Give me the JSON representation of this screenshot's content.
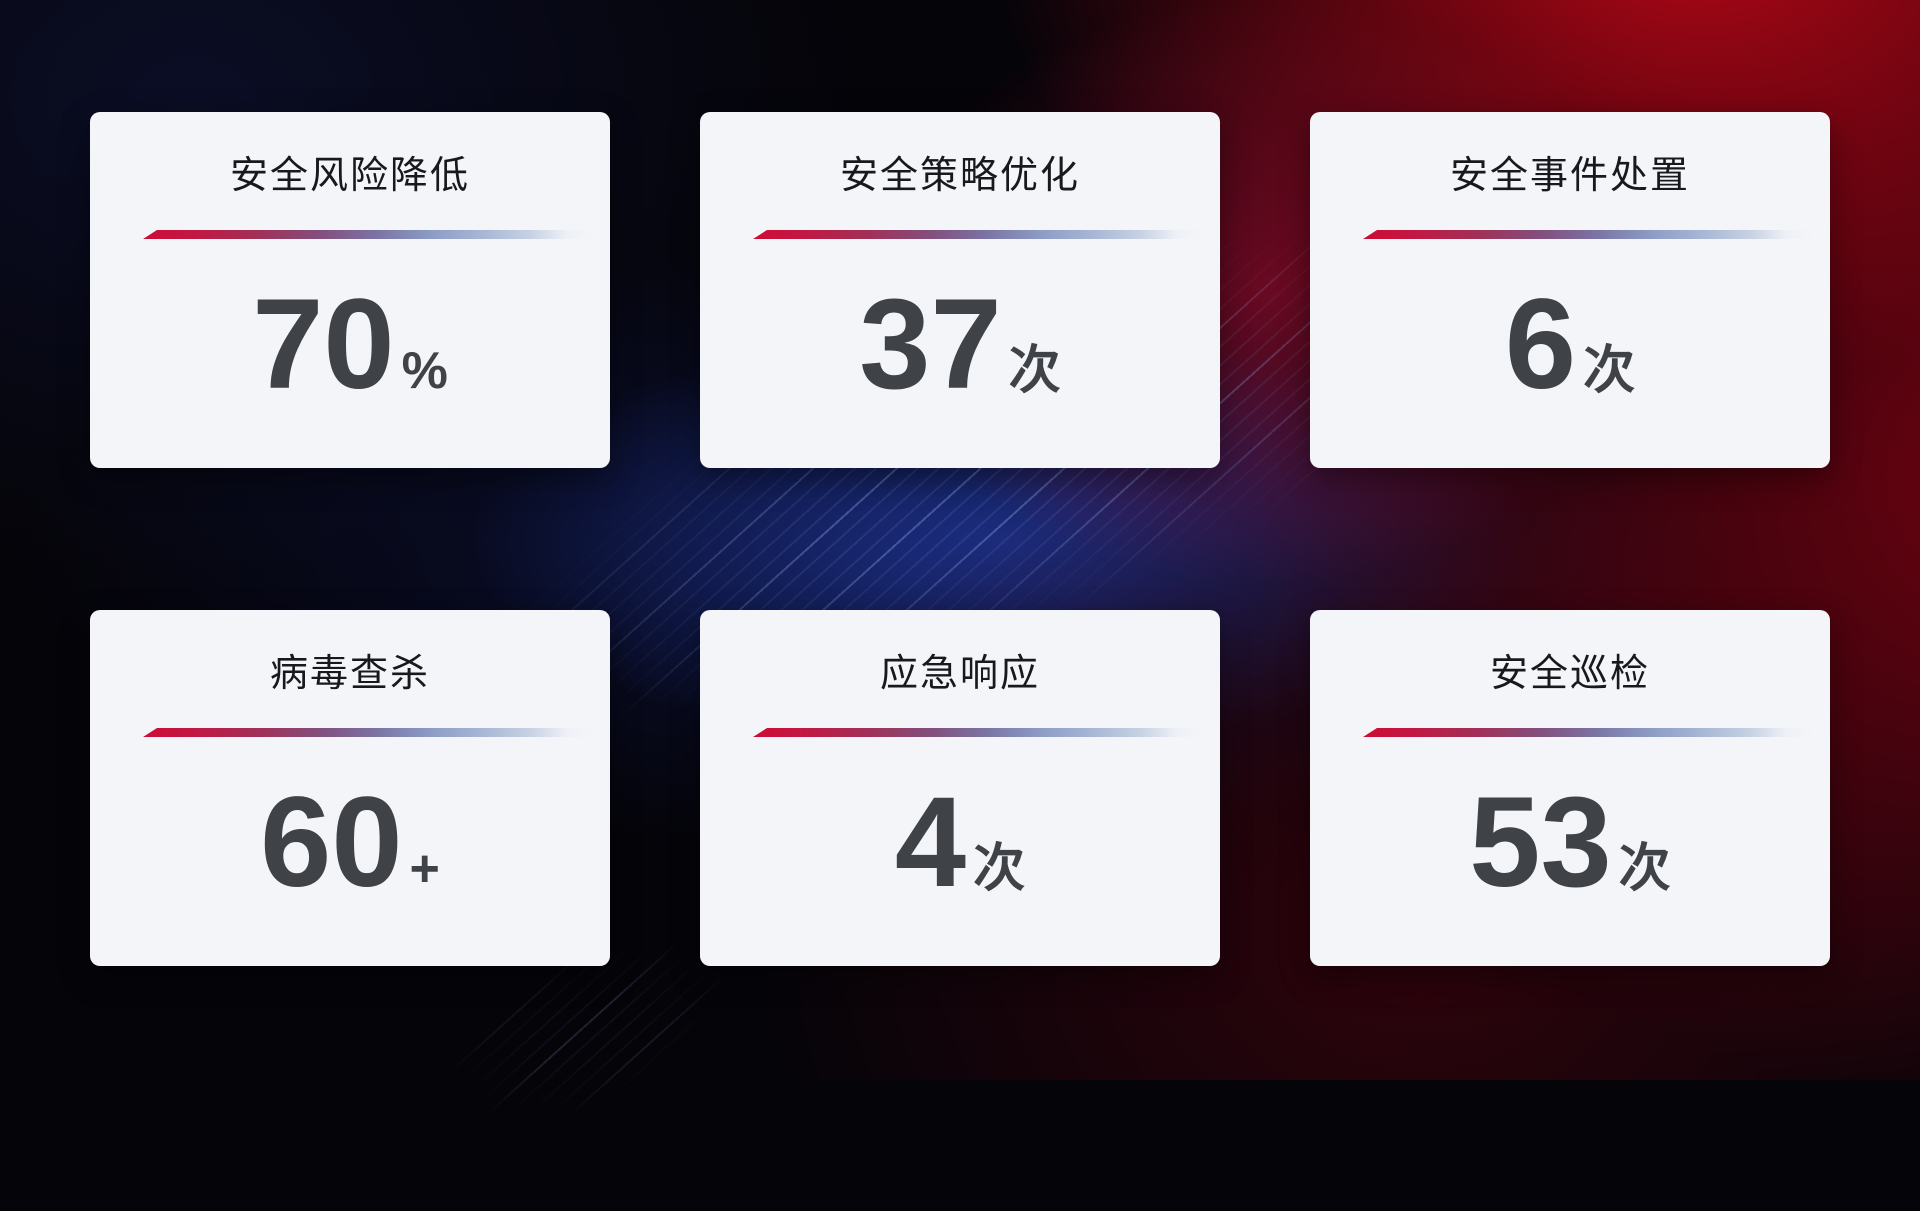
{
  "screen": {
    "type": "security-operations-kpi-dashboard",
    "colors": {
      "background_base": "#050409",
      "background_red_glow": "#ba0616",
      "background_crimson_beam": "#cd0e3a",
      "background_blue_glow": "#1e328e",
      "background_navy": "#0c102c",
      "background_maroon": "#420310",
      "card_background": "#f4f5f8",
      "card_title_text": "#17191e",
      "card_value_text": "#3f4247",
      "divider_red": "#ce0c35",
      "divider_purple": "#7b74a5",
      "divider_light_blue": "#a9b8d6"
    }
  },
  "cards": [
    {
      "title": "安全风险降低",
      "value": "70",
      "unit": "%"
    },
    {
      "title": "安全策略优化",
      "value": "37",
      "unit": "次"
    },
    {
      "title": "安全事件处置",
      "value": "6",
      "unit": "次"
    },
    {
      "title": "病毒查杀",
      "value": "60",
      "unit": "+"
    },
    {
      "title": "应急响应",
      "value": "4",
      "unit": "次"
    },
    {
      "title": "安全巡检",
      "value": "53",
      "unit": "次"
    }
  ]
}
